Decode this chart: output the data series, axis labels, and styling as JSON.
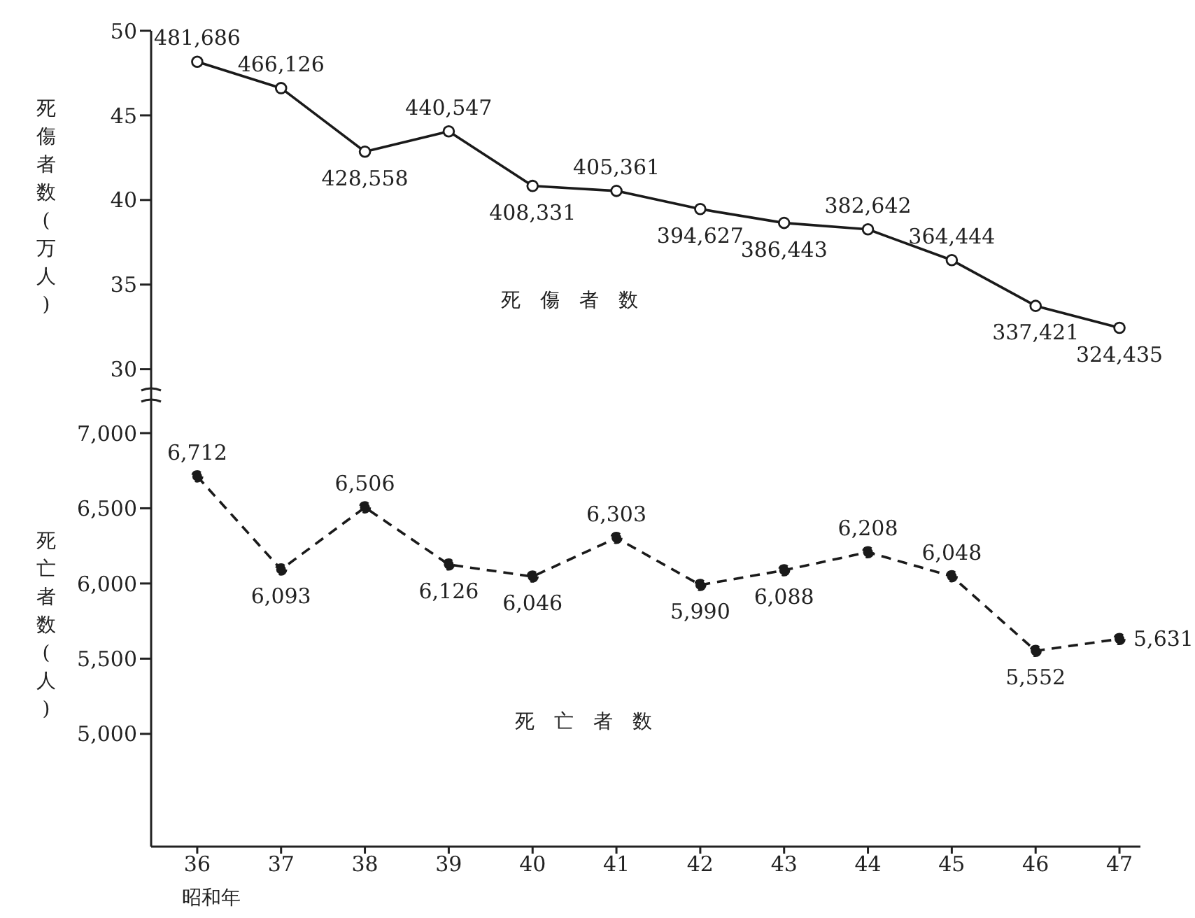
{
  "chart_data": [
    {
      "type": "line",
      "categories": [
        "36",
        "37",
        "38",
        "39",
        "40",
        "41",
        "42",
        "43",
        "44",
        "45",
        "46",
        "47"
      ],
      "ylabel": "死傷者数(万人)",
      "ylim": [
        28,
        50
      ],
      "yticks": [
        30,
        35,
        40,
        45,
        50
      ],
      "annotations": [
        {
          "text": "481,686",
          "x": "36",
          "y": 48.1686
        },
        {
          "text": "466,126",
          "x": "37",
          "y": 46.6126
        },
        {
          "text": "428,558",
          "x": "38",
          "y": 42.8558
        },
        {
          "text": "440,547",
          "x": "39",
          "y": 44.0547
        },
        {
          "text": "408,331",
          "x": "40",
          "y": 40.8331
        },
        {
          "text": "405,361",
          "x": "41",
          "y": 40.5361
        },
        {
          "text": "394,627",
          "x": "42",
          "y": 39.4627
        },
        {
          "text": "386,443",
          "x": "43",
          "y": 38.6443
        },
        {
          "text": "382,642",
          "x": "44",
          "y": 38.2642
        },
        {
          "text": "364,444",
          "x": "45",
          "y": 36.4444
        },
        {
          "text": "337,421",
          "x": "46",
          "y": 33.7421
        },
        {
          "text": "324,435",
          "x": "47",
          "y": 32.4435
        }
      ],
      "tick_labels": "y",
      "marker": "circle",
      "line_style": "solid",
      "legend": false,
      "series": [
        {
          "name": "死傷者数",
          "color": "#1a1a1a",
          "values": [
            48.1686,
            46.6126,
            42.8558,
            44.0547,
            40.8331,
            40.5361,
            39.4627,
            38.6443,
            38.2642,
            36.4444,
            33.7421,
            32.4435
          ]
        }
      ]
    },
    {
      "type": "line",
      "categories": [
        "36",
        "37",
        "38",
        "39",
        "40",
        "41",
        "42",
        "43",
        "44",
        "45",
        "46",
        "47"
      ],
      "xlabel": "昭和年",
      "ylabel": "死亡者数(人)",
      "ylim": [
        4250,
        7200
      ],
      "yticks": [
        {
          "value": 5000,
          "label": "5,000"
        },
        {
          "value": 5500,
          "label": "5,500"
        },
        {
          "value": 6000,
          "label": "6,000"
        },
        {
          "value": 6500,
          "label": "6,500"
        },
        {
          "value": 7000,
          "label": "7,000"
        }
      ],
      "marker": "circle",
      "line_style": "dashed",
      "legend": false,
      "series": [
        {
          "name": "死亡者数",
          "color": "#1a1a1a",
          "values": [
            6712,
            6093,
            6506,
            6126,
            6046,
            6303,
            5990,
            6088,
            6208,
            6048,
            5552,
            5631
          ],
          "value_labels": [
            "6,712",
            "6,093",
            "6,506",
            "6,126",
            "6,046",
            "6,303",
            "5,990",
            "6,088",
            "6,208",
            "6,048",
            "5,552",
            "5,631"
          ]
        }
      ]
    }
  ]
}
